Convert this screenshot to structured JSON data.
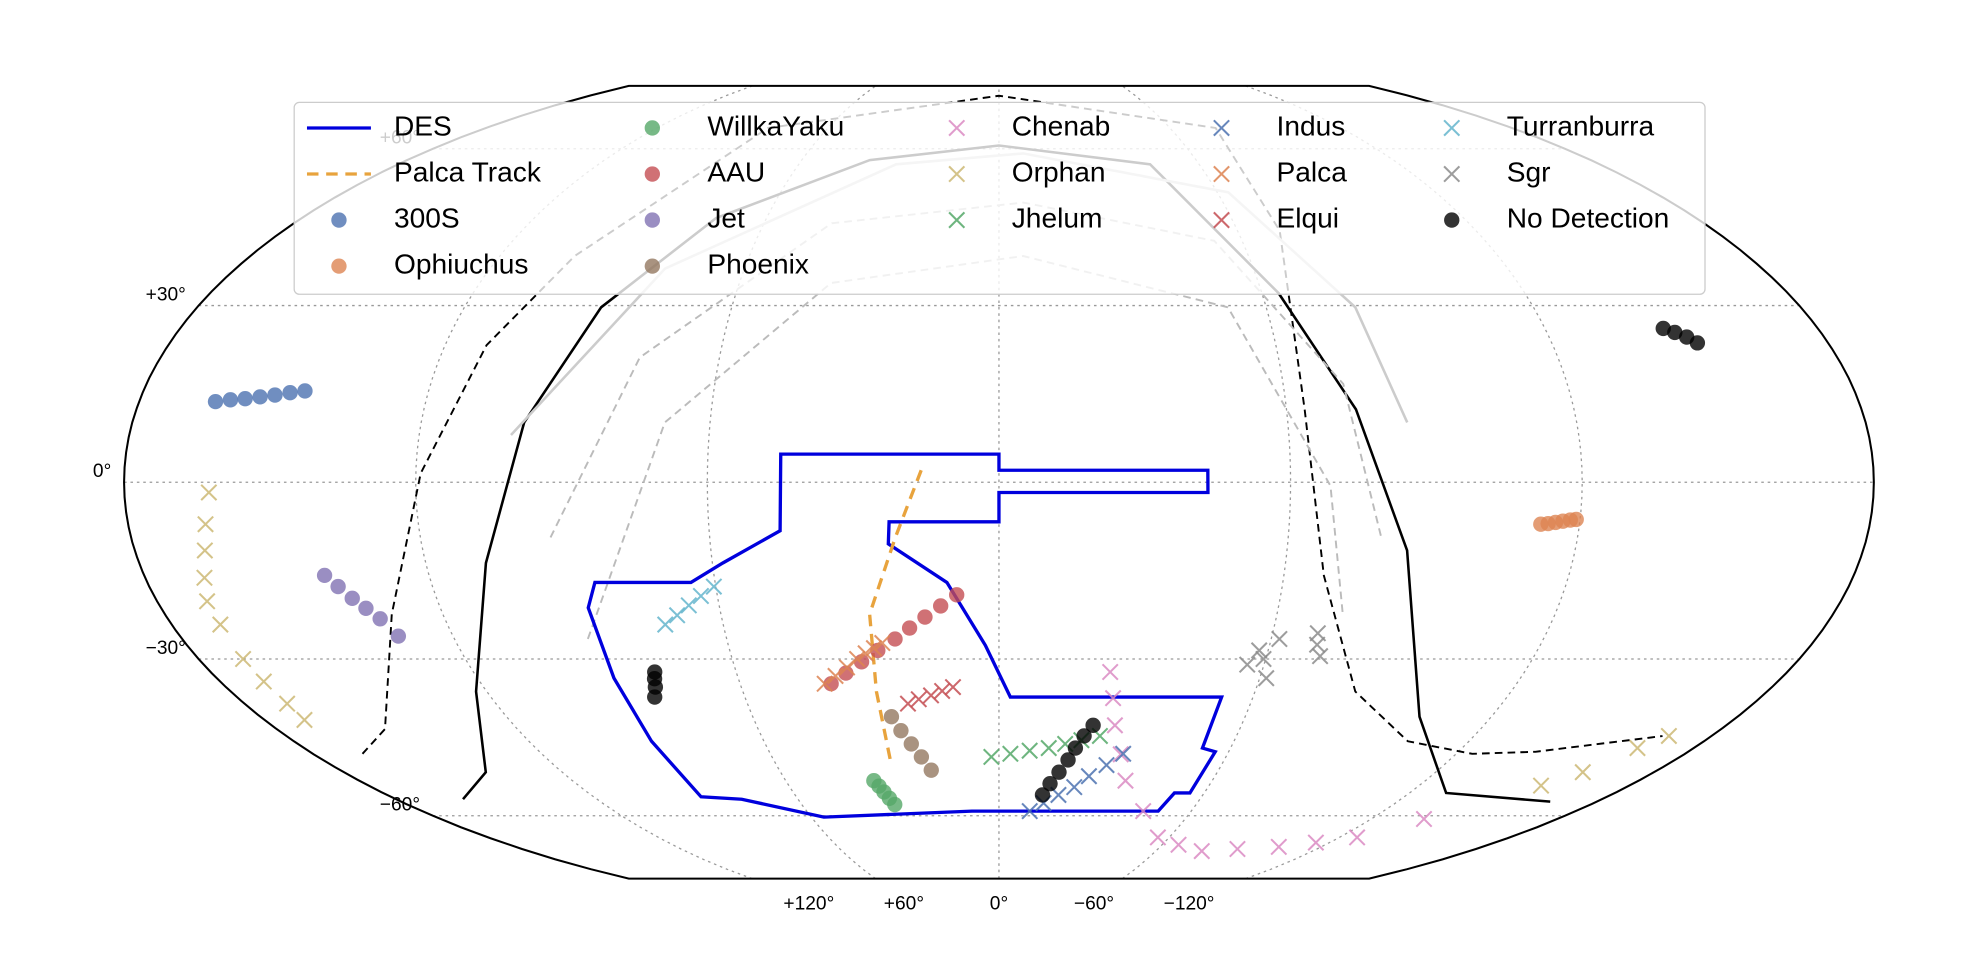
{
  "chart_data": {
    "type": "scatter",
    "projection": "mollweide",
    "xlim": [
      180,
      -180
    ],
    "ylim": [
      -75,
      75
    ],
    "xticks": [
      {
        "value": 120,
        "label": "+120°"
      },
      {
        "value": 60,
        "label": "+60°"
      },
      {
        "value": 0,
        "label": "0°"
      },
      {
        "value": -60,
        "label": "−60°"
      },
      {
        "value": -120,
        "label": "−120°"
      }
    ],
    "yticks": [
      {
        "value": 60,
        "label": "+60°"
      },
      {
        "value": 30,
        "label": "+30°"
      },
      {
        "value": 0,
        "label": "0°"
      },
      {
        "value": -30,
        "label": "−30°"
      },
      {
        "value": -60,
        "label": "−60°"
      }
    ],
    "grid": true,
    "legend": "upper center",
    "legend_columns": 5,
    "lines": [
      {
        "name": "DES",
        "color": "#0000dd",
        "linestyle": "solid",
        "closed": true,
        "x": [
          45,
          0,
          0,
          -43,
          -43,
          0,
          0,
          22.7,
          23,
          11,
          3,
          -2.7,
          -52.6,
          -52.7,
          -56.5,
          -55.8,
          -51.3,
          -49.7,
          8.4,
          56,
          76.8,
          88.2,
          88.7,
          88.6,
          88.2,
          85.4,
          65.1,
          57.8,
          45.3
        ],
        "y": [
          4.7,
          4.7,
          2,
          2,
          -1.7,
          -1.7,
          -6.6,
          -6.6,
          -10.3,
          -16.8,
          -27.6,
          -36.8,
          -36.8,
          -46.3,
          -47,
          -55.2,
          -55.2,
          -59,
          -59,
          -60.3,
          -56.5,
          -56,
          -45,
          -33.4,
          -21.1,
          -16.8,
          -16.8,
          -13.5,
          -8.1
        ]
      },
      {
        "name": "Palca Track",
        "color": "#e8a33d",
        "linestyle": "dashed",
        "closed": false,
        "x": [
          16,
          21.5,
          27.9,
          28.7,
          29
        ],
        "y": [
          2,
          -9.2,
          -22.2,
          -35.8,
          -49.5
        ]
      }
    ],
    "series": [
      {
        "name": "300S",
        "color": "#4c72b0",
        "marker": "o",
        "x": [
          164,
          161,
          158,
          155,
          152,
          149,
          146
        ],
        "y": [
          13.5,
          13.8,
          14,
          14.3,
          14.6,
          15,
          15.3
        ]
      },
      {
        "name": "Ophiuchus",
        "color": "#dd8452",
        "marker": "o",
        "x": [
          -112,
          -113.5,
          -115,
          -116.5,
          -118,
          -119.2
        ],
        "y": [
          -7,
          -6.9,
          -6.7,
          -6.5,
          -6.3,
          -6.2
        ]
      },
      {
        "name": "WillkaYaku",
        "color": "#55a868",
        "marker": "o",
        "x": [
          35.2,
          34.3,
          33.5,
          32.6,
          31.7
        ],
        "y": [
          -52.7,
          -53.8,
          -55,
          -56.3,
          -57.6
        ]
      },
      {
        "name": "AAU",
        "color": "#c44e52",
        "marker": "o",
        "x": [
          38.9,
          35,
          31,
          27,
          22.9,
          19.5,
          16,
          12.5,
          9
        ],
        "y": [
          -34.4,
          -32.5,
          -30.5,
          -28.5,
          -26.5,
          -24.6,
          -22.7,
          -20.8,
          -18.9
        ]
      },
      {
        "name": "Jet",
        "color": "#8172b3",
        "marker": "o",
        "x": [
          142,
          140,
          138,
          136,
          134,
          132
        ],
        "y": [
          -15.6,
          -17.5,
          -19.5,
          -21.2,
          -23,
          -26
        ]
      },
      {
        "name": "Phoenix",
        "color": "#937860",
        "marker": "o",
        "x": [
          26.2,
          24.5,
          22.5,
          20.5,
          18.5
        ],
        "y": [
          -40.4,
          -43,
          -45.5,
          -48,
          -50.6
        ]
      },
      {
        "name": "Chenab",
        "color": "#da8bc3",
        "marker": "x",
        "x": [
          -25.4,
          -27,
          -28.7,
          -32,
          -35.6,
          -45,
          -56,
          -66,
          -77.6,
          -90,
          -104.2,
          -115,
          -126.2,
          -137
        ],
        "y": [
          -32.3,
          -37,
          -42,
          -47.5,
          -52.7,
          -59,
          -64.8,
          -66.5,
          -68,
          -67.5,
          -67,
          -66,
          -64.8,
          -60.7
        ]
      },
      {
        "name": "Orphan",
        "color": "#ccb974",
        "marker": "x",
        "x": [
          162.6,
          164,
          165.4,
          167.5,
          169.3,
          169.4,
          170,
          169.9,
          169.8,
          170.2,
          -154.8,
          -160.4,
          -165.4,
          -169.2
        ],
        "y": [
          -1.7,
          -7,
          -11.4,
          -16,
          -20,
          -24,
          -30,
          -34,
          -38,
          -41,
          -53.7,
          -51,
          -46.3,
          -44
        ]
      },
      {
        "name": "Jhelum",
        "color": "#55a868",
        "marker": "x",
        "x": [
          2,
          -3,
          -8,
          -12.9,
          -17,
          -21,
          -25.5
        ],
        "y": [
          -48,
          -47.4,
          -46.8,
          -46.3,
          -45.5,
          -44.8,
          -44
        ]
      },
      {
        "name": "Indus",
        "color": "#4c72b0",
        "marker": "x",
        "x": [
          -9.6,
          -13.5,
          -17.5,
          -21.6,
          -25,
          -29,
          -32.6
        ],
        "y": [
          -59,
          -57.3,
          -55.6,
          -54,
          -51.8,
          -49.6,
          -47.4
        ]
      },
      {
        "name": "Palca",
        "color": "#dd8452",
        "marker": "x",
        "x": [
          40.4,
          37.5,
          34.5,
          31.9,
          29.8,
          27.8,
          25.8
        ],
        "y": [
          -34.4,
          -33,
          -31.5,
          -30,
          -29,
          -28.1,
          -27.2
        ]
      },
      {
        "name": "Elqui",
        "color": "#c44e52",
        "marker": "x",
        "x": [
          21.7,
          19,
          16,
          13.3,
          10.7
        ],
        "y": [
          -38,
          -37.2,
          -36.5,
          -35.7,
          -35
        ]
      },
      {
        "name": "Turranburra",
        "color": "#64b5cd",
        "marker": "x",
        "x": [
          72.6,
          69.5,
          66.5,
          63.5,
          60.4
        ],
        "y": [
          -24,
          -22.4,
          -20.7,
          -19.1,
          -17.5
        ]
      },
      {
        "name": "Sgr",
        "color": "#8c8c8c",
        "marker": "x",
        "x": [
          -56.2,
          -58,
          -61.8,
          -61.5,
          -69.9,
          -72,
          -70.5,
          -59.5
        ],
        "y": [
          -31,
          -28.5,
          -26.5,
          -33.4,
          -25.5,
          -29.5,
          -27.5,
          -30
        ]
      },
      {
        "name": "No Detection",
        "color": "#000000",
        "marker": "o",
        "x": [
          -146,
          -148,
          -150,
          -151.6,
          78.6,
          79.3,
          80,
          81.3,
          -23.3,
          -21.5,
          -19.8,
          -18.4,
          -16.5,
          -14.5,
          -12.8
        ],
        "y": [
          26,
          25.3,
          24.5,
          23.5,
          -32.3,
          -33.5,
          -35,
          -36.8,
          -42,
          -44,
          -46.3,
          -48.6,
          -51,
          -53.3,
          -55.6
        ]
      }
    ],
    "curves": [
      {
        "color": "#000000",
        "linestyle": "solid",
        "x": [
          160,
          141,
          122.5,
          107.4,
          98.6,
          89.3,
          73,
          39.3,
          0,
          -45.3,
          -63.8,
          -74.5,
          -85,
          -102.5,
          -130.7,
          -166
        ],
        "y": [
          -56.5,
          -51,
          -35.8,
          -13.5,
          10,
          29.7,
          46,
          57.6,
          60.7,
          56.7,
          32.2,
          12.2,
          -11.4,
          -40.4,
          -55.2,
          -57
        ]
      },
      {
        "color": "#000000",
        "linestyle": "dashed",
        "x": [
          167,
          153,
          131,
          119,
          111,
          102,
          81,
          0,
          -76,
          -70.6,
          -63.8,
          -68.4,
          -83.5,
          -104.4,
          -124.2,
          -140.1,
          -167.6
        ],
        "y": [
          -47.4,
          -42.7,
          -22.2,
          1.5,
          23.1,
          38.9,
          64.6,
          72.4,
          64.6,
          43.6,
          12.2,
          -15.6,
          -35.8,
          -45,
          -47.4,
          -47,
          -44
        ]
      },
      {
        "color": "#cccccc",
        "linestyle": "solid",
        "x": [
          101,
          78.7,
          30.8,
          -7.5,
          -63,
          -80,
          -84.8
        ],
        "y": [
          7.9,
          36.6,
          56.7,
          59,
          51,
          29.7,
          10
        ]
      },
      {
        "color": "#bbbbbb",
        "linestyle": "dashed",
        "x": [
          93,
          77.1,
          42.7,
          -6.5,
          -53.1,
          -72.7,
          -79.3
        ],
        "y": [
          -9.2,
          21,
          45,
          49,
          41.7,
          16.5,
          -9.2
        ]
      },
      {
        "color": "#bbbbbb",
        "linestyle": "dashed",
        "x": [
          90.6,
          69.4,
          38.8,
          -5.8,
          -51.4,
          -68.2,
          -74.2
        ],
        "y": [
          -26.5,
          10,
          34,
          38.9,
          29.7,
          -0.6,
          -22.2
        ]
      }
    ]
  }
}
